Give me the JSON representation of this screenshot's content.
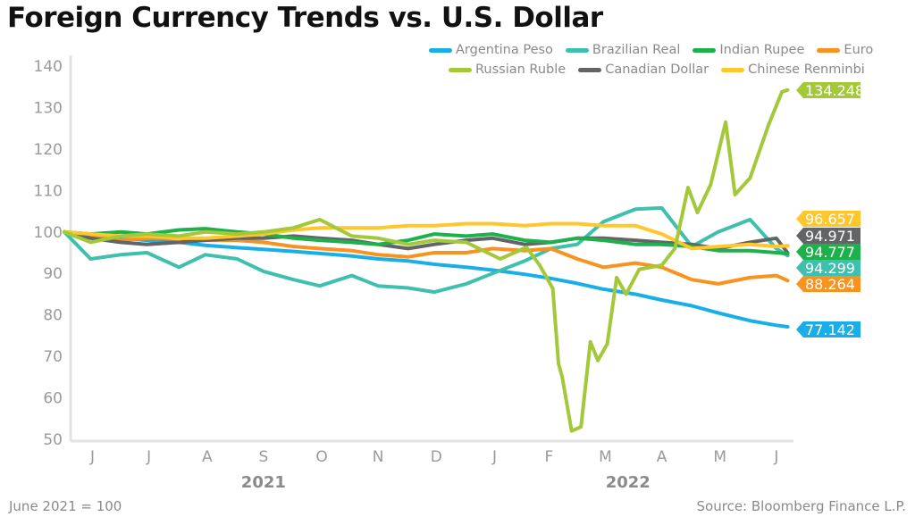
{
  "chart_data": {
    "type": "line",
    "title": "Foreign Currency Trends vs. U.S. Dollar",
    "footnote": "June 2021 = 100",
    "source": "Source: Bloomberg Finance L.P.",
    "ylim": [
      50,
      140
    ],
    "yticks": [
      "50",
      "60",
      "70",
      "80",
      "90",
      "100",
      "110",
      "120",
      "130",
      "140"
    ],
    "xlim": [
      "2021-06-01",
      "2022-06-25"
    ],
    "xticks": [
      {
        "label": "J",
        "date": "2021-06-16"
      },
      {
        "label": "J",
        "date": "2021-07-16"
      },
      {
        "label": "A",
        "date": "2021-08-16"
      },
      {
        "label": "S",
        "date": "2021-09-15"
      },
      {
        "label": "O",
        "date": "2021-10-16"
      },
      {
        "label": "N",
        "date": "2021-11-15"
      },
      {
        "label": "D",
        "date": "2021-12-16"
      },
      {
        "label": "J",
        "date": "2022-01-16"
      },
      {
        "label": "F",
        "date": "2022-02-14"
      },
      {
        "label": "M",
        "date": "2022-03-16"
      },
      {
        "label": "A",
        "date": "2022-04-15"
      },
      {
        "label": "M",
        "date": "2022-05-16"
      },
      {
        "label": "J",
        "date": "2022-06-15"
      }
    ],
    "year_labels": [
      {
        "label": "2021",
        "date": "2021-09-15"
      },
      {
        "label": "2022",
        "date": "2022-03-28"
      }
    ],
    "grid": false,
    "legend_position": "top-right",
    "dates": [
      "2021-06-01",
      "2021-06-15",
      "2021-07-01",
      "2021-07-15",
      "2021-08-01",
      "2021-08-15",
      "2021-09-01",
      "2021-09-15",
      "2021-10-01",
      "2021-10-15",
      "2021-11-01",
      "2021-11-15",
      "2021-12-01",
      "2021-12-15",
      "2022-01-01",
      "2022-01-15",
      "2022-02-01",
      "2022-02-15",
      "2022-03-01",
      "2022-03-15",
      "2022-04-01",
      "2022-04-15",
      "2022-05-01",
      "2022-05-15",
      "2022-06-01",
      "2022-06-15",
      "2022-06-21"
    ],
    "series": [
      {
        "name": "Argentina Peso",
        "color": "#1AAEE8",
        "end_label": "77.142",
        "values": [
          100,
          99,
          98.5,
          98,
          97.5,
          96.8,
          96.2,
          95.8,
          95.3,
          94.8,
          94.2,
          93.5,
          93,
          92.2,
          91.5,
          90.8,
          89.8,
          88.8,
          87.6,
          86.2,
          85,
          83.6,
          82.2,
          80.5,
          78.6,
          77.5,
          77.142
        ]
      },
      {
        "name": "Brazilian Real",
        "color": "#3FBFAD",
        "end_label": "94.299",
        "values": [
          100,
          93.5,
          94.5,
          95,
          91.5,
          94.5,
          93.5,
          90.5,
          88.5,
          87,
          89.5,
          87,
          86.5,
          85.5,
          87.5,
          90,
          93,
          96,
          97,
          102.5,
          105.5,
          105.8,
          96.5,
          100,
          103,
          96,
          94.299
        ]
      },
      {
        "name": "Indian Rupee",
        "color": "#1DB14B",
        "end_label": "94.777",
        "values": [
          100,
          99.5,
          100,
          99.5,
          100.5,
          100.8,
          100,
          99.5,
          98.5,
          98,
          97.5,
          97,
          98,
          99.5,
          99,
          99.5,
          98,
          97.5,
          98.5,
          98,
          97,
          97,
          96.5,
          95.5,
          95.5,
          95,
          94.777
        ]
      },
      {
        "name": "Euro",
        "color": "#F7931E",
        "end_label": "88.264",
        "values": [
          100,
          99,
          98,
          98.5,
          98.5,
          98,
          98,
          97.5,
          96.5,
          96,
          95.5,
          94.5,
          94,
          95,
          95,
          96,
          95.5,
          96,
          93.5,
          91.5,
          92.5,
          91.5,
          88.5,
          87.5,
          89,
          89.5,
          88.264
        ]
      },
      {
        "name": "Russian Ruble",
        "color": "#A3C93A",
        "end_label": "134.248",
        "points": [
          [
            "2021-06-01",
            100
          ],
          [
            "2021-06-15",
            97.5
          ],
          [
            "2021-07-01",
            99
          ],
          [
            "2021-07-15",
            99.5
          ],
          [
            "2021-08-01",
            99
          ],
          [
            "2021-08-15",
            100
          ],
          [
            "2021-09-01",
            99.5
          ],
          [
            "2021-09-15",
            100
          ],
          [
            "2021-10-01",
            101
          ],
          [
            "2021-10-15",
            103
          ],
          [
            "2021-11-01",
            99
          ],
          [
            "2021-11-15",
            98.5
          ],
          [
            "2021-12-01",
            97
          ],
          [
            "2021-12-15",
            98
          ],
          [
            "2022-01-01",
            97.5
          ],
          [
            "2022-01-19",
            93.5
          ],
          [
            "2022-02-02",
            96.3
          ],
          [
            "2022-02-09",
            92
          ],
          [
            "2022-02-16",
            86.4
          ],
          [
            "2022-02-19",
            68.3
          ],
          [
            "2022-02-21",
            65
          ],
          [
            "2022-02-26",
            52
          ],
          [
            "2022-03-03",
            53
          ],
          [
            "2022-03-08",
            73.5
          ],
          [
            "2022-03-12",
            69
          ],
          [
            "2022-03-17",
            73
          ],
          [
            "2022-03-22",
            89
          ],
          [
            "2022-03-27",
            85
          ],
          [
            "2022-04-03",
            91
          ],
          [
            "2022-04-15",
            92
          ],
          [
            "2022-04-22",
            96
          ],
          [
            "2022-04-29",
            110.7
          ],
          [
            "2022-05-04",
            104.7
          ],
          [
            "2022-05-11",
            111.4
          ],
          [
            "2022-05-19",
            126.5
          ],
          [
            "2022-05-24",
            109
          ],
          [
            "2022-06-01",
            113
          ],
          [
            "2022-06-11",
            126
          ],
          [
            "2022-06-18",
            133.8
          ],
          [
            "2022-06-21",
            134.248
          ]
        ]
      },
      {
        "name": "Canadian Dollar",
        "color": "#636466",
        "end_label": "94.971",
        "values": [
          100,
          98.5,
          97.5,
          97,
          97.5,
          98,
          98.5,
          98.5,
          99,
          98.5,
          98,
          97,
          96,
          97,
          98,
          98.5,
          97,
          97.5,
          98.5,
          98.5,
          98,
          97.5,
          97,
          96,
          97.5,
          98.5,
          94.971
        ]
      },
      {
        "name": "Chinese Renminbi",
        "color": "#FFC72C",
        "end_label": "96.657",
        "values": [
          100,
          99.5,
          99,
          99,
          98.5,
          98.5,
          99,
          99.5,
          100.5,
          101,
          101,
          101,
          101.5,
          101.5,
          102,
          102,
          101.5,
          102,
          102,
          101.5,
          101.5,
          99.5,
          96,
          96.5,
          97,
          96.5,
          96.657
        ]
      }
    ]
  }
}
